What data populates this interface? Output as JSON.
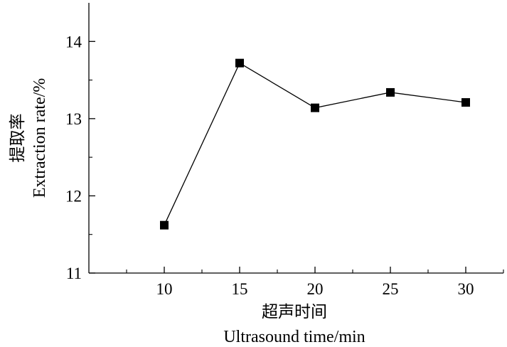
{
  "chart_data": {
    "type": "line",
    "x": [
      10,
      15,
      20,
      25,
      30
    ],
    "series": [
      {
        "values": [
          11.62,
          13.72,
          13.14,
          13.34,
          13.21
        ],
        "color": "#000000",
        "marker": "square"
      }
    ],
    "xlabel_cn": "超声时间",
    "xlabel": "Ultrasound time/min",
    "ylabel_cn": "提取率",
    "ylabel": "Extraction rate/%",
    "xticks": [
      10,
      15,
      20,
      25,
      30
    ],
    "yticks": [
      11,
      12,
      13,
      14
    ],
    "xlim": [
      5,
      32.5
    ],
    "ylim": [
      11,
      14.5
    ],
    "grid": false
  }
}
